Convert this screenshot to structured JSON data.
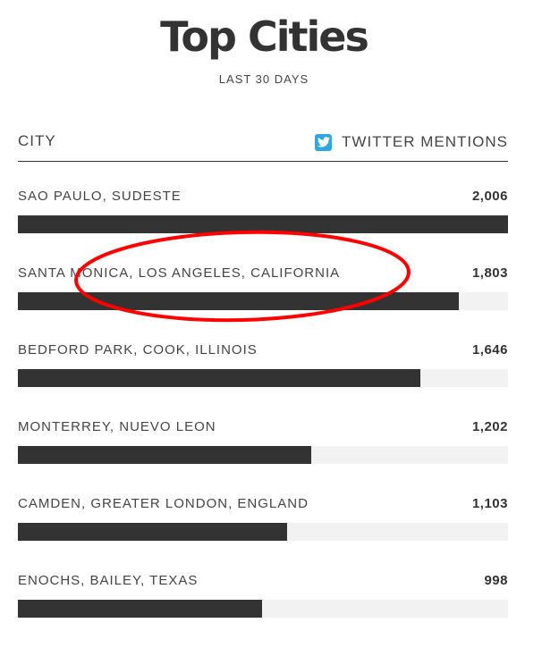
{
  "header": {
    "title": "Top Cities",
    "subtitle": "LAST 30 DAYS"
  },
  "table": {
    "city_header": "CITY",
    "metric_header": "TWITTER MENTIONS",
    "metric_icon": "twitter-icon"
  },
  "colors": {
    "bar": "#333333",
    "track": "#f2f2f2",
    "twitter": "#2ea7e0",
    "annotation": "#ff0000"
  },
  "chart_data": {
    "type": "bar",
    "orientation": "horizontal",
    "categories": [
      "SAO PAULO, SUDESTE",
      "SANTA MONICA, LOS ANGELES, CALIFORNIA",
      "BEDFORD PARK, COOK, ILLINOIS",
      "MONTERREY, NUEVO LEON",
      "CAMDEN, GREATER LONDON, ENGLAND",
      "ENOCHS, BAILEY, TEXAS"
    ],
    "values": [
      2006,
      1803,
      1646,
      1202,
      1103,
      998
    ],
    "value_labels": [
      "2,006",
      "1,803",
      "1,646",
      "1,202",
      "1,103",
      "998"
    ],
    "title": "Top Cities",
    "subtitle": "LAST 30 DAYS",
    "xlim": [
      0,
      2006
    ],
    "highlighted": "SANTA MONICA, LOS ANGELES, CALIFORNIA"
  }
}
